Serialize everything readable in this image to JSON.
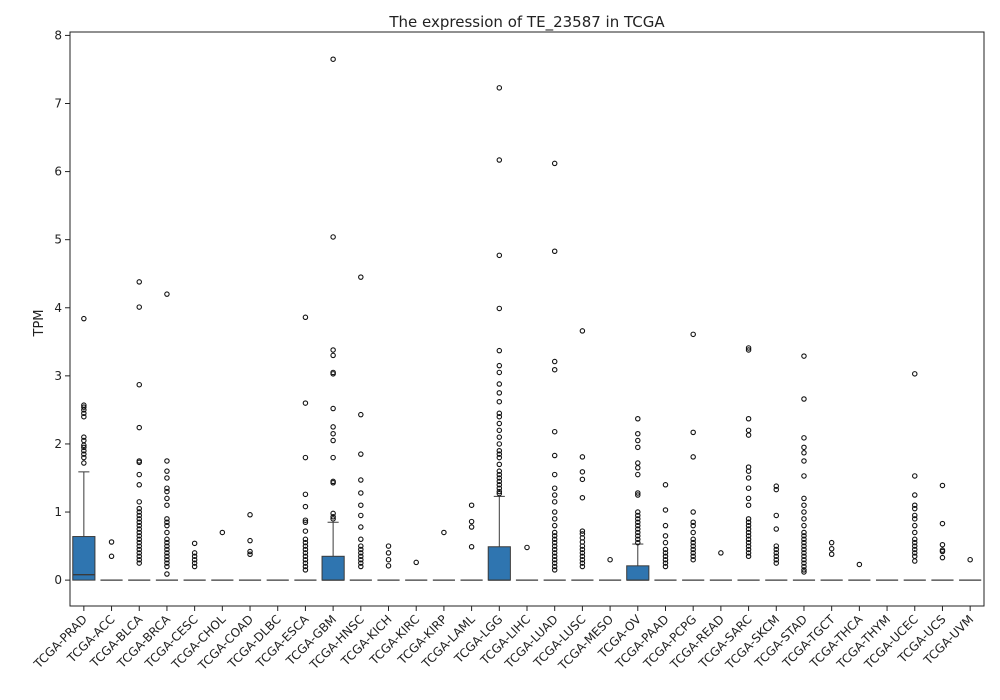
{
  "chart_data": {
    "type": "box",
    "title": "The expression of TE_23587 in TCGA",
    "xlabel": "",
    "ylabel": "TPM",
    "ylim": [
      -0.38,
      8.05
    ],
    "yticks": [
      0,
      1,
      2,
      3,
      4,
      5,
      6,
      7,
      8
    ],
    "box_color": "#2f75b0",
    "categories": [
      "TCGA-PRAD",
      "TCGA-ACC",
      "TCGA-BLCA",
      "TCGA-BRCA",
      "TCGA-CESC",
      "TCGA-CHOL",
      "TCGA-COAD",
      "TCGA-DLBC",
      "TCGA-ESCA",
      "TCGA-GBM",
      "TCGA-HNSC",
      "TCGA-KICH",
      "TCGA-KIRC",
      "TCGA-KIRP",
      "TCGA-LAML",
      "TCGA-LGG",
      "TCGA-LIHC",
      "TCGA-LUAD",
      "TCGA-LUSC",
      "TCGA-MESO",
      "TCGA-OV",
      "TCGA-PAAD",
      "TCGA-PCPG",
      "TCGA-READ",
      "TCGA-SARC",
      "TCGA-SKCM",
      "TCGA-STAD",
      "TCGA-TGCT",
      "TCGA-THCA",
      "TCGA-THYM",
      "TCGA-UCEC",
      "TCGA-UCS",
      "TCGA-UVM"
    ],
    "boxes": [
      {
        "q1": 0,
        "median": 0.08,
        "q3": 0.64,
        "whisker_low": 0,
        "whisker_high": 1.59,
        "outliers": [
          3.84,
          2.57,
          2.54,
          2.5,
          2.45,
          2.4,
          2.1,
          2.05,
          1.98,
          1.95,
          1.9,
          1.85,
          1.8,
          1.72
        ]
      },
      {
        "q1": 0,
        "median": 0,
        "q3": 0,
        "whisker_low": 0,
        "whisker_high": 0,
        "outliers": [
          0.56,
          0.35
        ]
      },
      {
        "q1": 0,
        "median": 0,
        "q3": 0,
        "whisker_low": 0,
        "whisker_high": 0,
        "outliers": [
          4.38,
          4.01,
          2.87,
          2.24,
          1.75,
          1.73,
          1.55,
          1.4,
          1.15,
          1.05,
          1.0,
          0.95,
          0.9,
          0.85,
          0.8,
          0.75,
          0.7,
          0.65,
          0.6,
          0.55,
          0.5,
          0.45,
          0.4,
          0.35,
          0.3,
          0.25
        ]
      },
      {
        "q1": 0,
        "median": 0,
        "q3": 0,
        "whisker_low": 0,
        "whisker_high": 0,
        "outliers": [
          4.2,
          1.75,
          1.6,
          1.5,
          1.35,
          1.3,
          1.2,
          1.1,
          0.9,
          0.85,
          0.8,
          0.7,
          0.6,
          0.55,
          0.5,
          0.45,
          0.4,
          0.35,
          0.3,
          0.25,
          0.2,
          0.09
        ]
      },
      {
        "q1": 0,
        "median": 0,
        "q3": 0,
        "whisker_low": 0,
        "whisker_high": 0,
        "outliers": [
          0.54,
          0.4,
          0.35,
          0.3,
          0.25,
          0.2
        ]
      },
      {
        "q1": 0,
        "median": 0,
        "q3": 0,
        "whisker_low": 0,
        "whisker_high": 0,
        "outliers": [
          0.7
        ]
      },
      {
        "q1": 0,
        "median": 0,
        "q3": 0,
        "whisker_low": 0,
        "whisker_high": 0,
        "outliers": [
          0.96,
          0.58,
          0.42,
          0.38
        ]
      },
      {
        "q1": 0,
        "median": 0,
        "q3": 0,
        "whisker_low": 0,
        "whisker_high": 0,
        "outliers": []
      },
      {
        "q1": 0,
        "median": 0,
        "q3": 0,
        "whisker_low": 0,
        "whisker_high": 0,
        "outliers": [
          3.86,
          2.6,
          1.8,
          1.26,
          1.08,
          0.88,
          0.85,
          0.72,
          0.6,
          0.55,
          0.5,
          0.45,
          0.4,
          0.35,
          0.3,
          0.25,
          0.2,
          0.15
        ]
      },
      {
        "q1": 0,
        "median": 0,
        "q3": 0.35,
        "whisker_low": 0,
        "whisker_high": 0.85,
        "outliers": [
          7.65,
          5.04,
          3.38,
          3.3,
          3.05,
          3.03,
          2.52,
          2.25,
          2.15,
          2.05,
          1.8,
          1.45,
          1.43,
          0.98,
          0.93,
          0.9
        ]
      },
      {
        "q1": 0,
        "median": 0,
        "q3": 0,
        "whisker_low": 0,
        "whisker_high": 0,
        "outliers": [
          4.45,
          2.43,
          1.85,
          1.47,
          1.28,
          1.1,
          0.95,
          0.78,
          0.6,
          0.5,
          0.45,
          0.4,
          0.35,
          0.3,
          0.25,
          0.2
        ]
      },
      {
        "q1": 0,
        "median": 0,
        "q3": 0,
        "whisker_low": 0,
        "whisker_high": 0,
        "outliers": [
          0.5,
          0.4,
          0.3,
          0.21
        ]
      },
      {
        "q1": 0,
        "median": 0,
        "q3": 0,
        "whisker_low": 0,
        "whisker_high": 0,
        "outliers": [
          0.26
        ]
      },
      {
        "q1": 0,
        "median": 0,
        "q3": 0,
        "whisker_low": 0,
        "whisker_high": 0,
        "outliers": [
          0.7
        ]
      },
      {
        "q1": 0,
        "median": 0,
        "q3": 0,
        "whisker_low": 0,
        "whisker_high": 0,
        "outliers": [
          1.1,
          0.86,
          0.78,
          0.49
        ]
      },
      {
        "q1": 0,
        "median": 0,
        "q3": 0.49,
        "whisker_low": 0,
        "whisker_high": 1.23,
        "outliers": [
          7.23,
          6.17,
          4.77,
          3.99,
          3.37,
          3.15,
          3.05,
          2.88,
          2.75,
          2.62,
          2.45,
          2.4,
          2.3,
          2.2,
          2.1,
          2.0,
          1.9,
          1.85,
          1.8,
          1.7,
          1.6,
          1.55,
          1.5,
          1.45,
          1.4,
          1.35,
          1.3,
          1.27
        ]
      },
      {
        "q1": 0,
        "median": 0,
        "q3": 0,
        "whisker_low": 0,
        "whisker_high": 0,
        "outliers": [
          0.48
        ]
      },
      {
        "q1": 0,
        "median": 0,
        "q3": 0,
        "whisker_low": 0,
        "whisker_high": 0,
        "outliers": [
          6.12,
          4.83,
          3.21,
          3.09,
          2.18,
          1.83,
          1.55,
          1.35,
          1.25,
          1.15,
          1.0,
          0.9,
          0.8,
          0.7,
          0.65,
          0.6,
          0.55,
          0.5,
          0.45,
          0.4,
          0.35,
          0.3,
          0.25,
          0.2,
          0.15
        ]
      },
      {
        "q1": 0,
        "median": 0,
        "q3": 0,
        "whisker_low": 0,
        "whisker_high": 0,
        "outliers": [
          3.66,
          1.81,
          1.59,
          1.48,
          1.21,
          0.72,
          0.68,
          0.62,
          0.56,
          0.5,
          0.45,
          0.4,
          0.35,
          0.3,
          0.25,
          0.2
        ]
      },
      {
        "q1": 0,
        "median": 0,
        "q3": 0,
        "whisker_low": 0,
        "whisker_high": 0,
        "outliers": [
          0.3
        ]
      },
      {
        "q1": 0,
        "median": 0,
        "q3": 0.21,
        "whisker_low": 0,
        "whisker_high": 0.53,
        "outliers": [
          2.37,
          2.15,
          2.05,
          1.95,
          1.72,
          1.65,
          1.55,
          1.28,
          1.25,
          1.0,
          0.95,
          0.9,
          0.85,
          0.8,
          0.75,
          0.7,
          0.65,
          0.6,
          0.55
        ]
      },
      {
        "q1": 0,
        "median": 0,
        "q3": 0,
        "whisker_low": 0,
        "whisker_high": 0,
        "outliers": [
          1.4,
          1.03,
          0.8,
          0.65,
          0.55,
          0.45,
          0.4,
          0.35,
          0.3,
          0.25,
          0.2
        ]
      },
      {
        "q1": 0,
        "median": 0,
        "q3": 0,
        "whisker_low": 0,
        "whisker_high": 0,
        "outliers": [
          3.61,
          2.17,
          1.81,
          1.0,
          0.85,
          0.8,
          0.7,
          0.6,
          0.55,
          0.5,
          0.45,
          0.4,
          0.35,
          0.3
        ]
      },
      {
        "q1": 0,
        "median": 0,
        "q3": 0,
        "whisker_low": 0,
        "whisker_high": 0,
        "outliers": [
          0.4
        ]
      },
      {
        "q1": 0,
        "median": 0,
        "q3": 0,
        "whisker_low": 0,
        "whisker_high": 0,
        "outliers": [
          3.41,
          3.38,
          2.37,
          2.2,
          2.13,
          1.66,
          1.6,
          1.5,
          1.35,
          1.2,
          1.1,
          0.9,
          0.85,
          0.8,
          0.75,
          0.7,
          0.65,
          0.6,
          0.55,
          0.5,
          0.45,
          0.4,
          0.35
        ]
      },
      {
        "q1": 0,
        "median": 0,
        "q3": 0,
        "whisker_low": 0,
        "whisker_high": 0,
        "outliers": [
          1.38,
          1.33,
          0.95,
          0.75,
          0.5,
          0.45,
          0.4,
          0.35,
          0.3,
          0.25
        ]
      },
      {
        "q1": 0,
        "median": 0,
        "q3": 0,
        "whisker_low": 0,
        "whisker_high": 0,
        "outliers": [
          3.29,
          2.66,
          2.09,
          1.95,
          1.87,
          1.75,
          1.53,
          1.2,
          1.1,
          1.0,
          0.9,
          0.8,
          0.7,
          0.65,
          0.6,
          0.55,
          0.5,
          0.45,
          0.4,
          0.35,
          0.3,
          0.25,
          0.2,
          0.15,
          0.12
        ]
      },
      {
        "q1": 0,
        "median": 0,
        "q3": 0,
        "whisker_low": 0,
        "whisker_high": 0,
        "outliers": [
          0.55,
          0.46,
          0.38
        ]
      },
      {
        "q1": 0,
        "median": 0,
        "q3": 0,
        "whisker_low": 0,
        "whisker_high": 0,
        "outliers": [
          0.23
        ]
      },
      {
        "q1": 0,
        "median": 0,
        "q3": 0,
        "whisker_low": 0,
        "whisker_high": 0,
        "outliers": []
      },
      {
        "q1": 0,
        "median": 0,
        "q3": 0,
        "whisker_low": 0,
        "whisker_high": 0,
        "outliers": [
          3.03,
          1.53,
          1.25,
          1.1,
          1.05,
          0.95,
          0.9,
          0.8,
          0.7,
          0.6,
          0.55,
          0.5,
          0.45,
          0.4,
          0.35,
          0.28
        ]
      },
      {
        "q1": 0,
        "median": 0,
        "q3": 0,
        "whisker_low": 0,
        "whisker_high": 0,
        "outliers": [
          1.39,
          0.83,
          0.52,
          0.44,
          0.42,
          0.33
        ]
      },
      {
        "q1": 0,
        "median": 0,
        "q3": 0,
        "whisker_low": 0,
        "whisker_high": 0,
        "outliers": [
          0.3
        ]
      }
    ]
  }
}
